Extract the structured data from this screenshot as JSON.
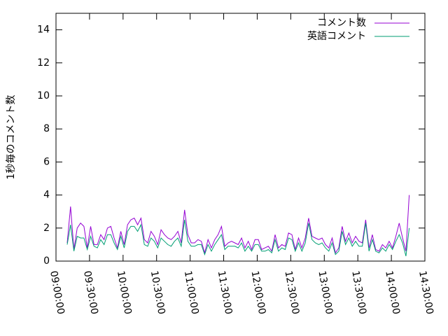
{
  "chart_data": {
    "type": "line",
    "ylabel": "1秒毎のコメント数",
    "x": [
      "09:10:00",
      "09:13:00",
      "09:16:00",
      "09:19:00",
      "09:22:00",
      "09:25:00",
      "09:28:00",
      "09:31:00",
      "09:34:00",
      "09:37:00",
      "09:40:00",
      "09:43:00",
      "09:46:00",
      "09:49:00",
      "09:52:00",
      "09:55:00",
      "09:58:00",
      "10:01:00",
      "10:04:00",
      "10:07:00",
      "10:10:00",
      "10:13:00",
      "10:16:00",
      "10:19:00",
      "10:22:00",
      "10:25:00",
      "10:28:00",
      "10:31:00",
      "10:34:00",
      "10:37:00",
      "10:40:00",
      "10:43:00",
      "10:46:00",
      "10:49:00",
      "10:52:00",
      "10:55:00",
      "10:58:00",
      "11:01:00",
      "11:04:00",
      "11:07:00",
      "11:10:00",
      "11:13:00",
      "11:16:00",
      "11:19:00",
      "11:22:00",
      "11:25:00",
      "11:28:00",
      "11:31:00",
      "11:34:00",
      "11:37:00",
      "11:40:00",
      "11:43:00",
      "11:46:00",
      "11:49:00",
      "11:52:00",
      "11:55:00",
      "11:58:00",
      "12:01:00",
      "12:04:00",
      "12:07:00",
      "12:10:00",
      "12:13:00",
      "12:16:00",
      "12:19:00",
      "12:22:00",
      "12:25:00",
      "12:28:00",
      "12:31:00",
      "12:34:00",
      "12:37:00",
      "12:40:00",
      "12:43:00",
      "12:46:00",
      "12:49:00",
      "12:52:00",
      "12:55:00",
      "12:58:00",
      "13:01:00",
      "13:04:00",
      "13:07:00",
      "13:10:00",
      "13:13:00",
      "13:16:00",
      "13:19:00",
      "13:22:00",
      "13:25:00",
      "13:28:00",
      "13:31:00",
      "13:34:00",
      "13:37:00",
      "13:40:00",
      "13:43:00",
      "13:46:00",
      "13:49:00",
      "13:52:00",
      "13:55:00",
      "13:58:00",
      "14:01:00",
      "14:04:00",
      "14:07:00",
      "14:10:00",
      "14:13:00",
      "14:16:00"
    ],
    "series": [
      {
        "name": "コメント数",
        "color": "#9400d3",
        "values": [
          1.1,
          3.3,
          0.7,
          2.0,
          2.3,
          2.1,
          0.8,
          2.1,
          1.0,
          1.0,
          1.6,
          1.3,
          2.0,
          2.1,
          1.4,
          0.8,
          1.8,
          1.0,
          2.2,
          2.5,
          2.6,
          2.2,
          2.6,
          1.3,
          1.1,
          1.8,
          1.5,
          1.0,
          1.9,
          1.6,
          1.4,
          1.3,
          1.5,
          1.8,
          1.1,
          3.1,
          1.6,
          1.1,
          1.1,
          1.3,
          1.2,
          0.5,
          1.3,
          0.8,
          1.3,
          1.6,
          2.1,
          0.9,
          1.1,
          1.2,
          1.1,
          1.0,
          1.4,
          0.8,
          1.2,
          0.7,
          1.3,
          1.3,
          0.7,
          0.8,
          0.9,
          0.6,
          1.6,
          0.8,
          1.0,
          0.9,
          1.7,
          1.6,
          0.7,
          1.4,
          0.8,
          1.4,
          2.6,
          1.5,
          1.4,
          1.3,
          1.4,
          1.0,
          0.8,
          1.4,
          0.5,
          0.8,
          2.1,
          1.2,
          1.7,
          1.1,
          1.5,
          1.2,
          1.1,
          2.5,
          0.8,
          1.6,
          0.7,
          0.6,
          1.0,
          0.8,
          1.2,
          0.8,
          1.5,
          2.3,
          1.4,
          0.6,
          4.0
        ]
      },
      {
        "name": "英語コメント",
        "color": "#009e73",
        "values": [
          1.0,
          2.2,
          0.6,
          1.5,
          1.4,
          1.4,
          0.7,
          1.5,
          0.9,
          0.8,
          1.3,
          1.0,
          1.6,
          1.6,
          1.1,
          0.7,
          1.5,
          0.8,
          1.8,
          2.1,
          2.1,
          1.8,
          2.2,
          1.0,
          0.9,
          1.4,
          1.2,
          0.8,
          1.4,
          1.2,
          1.0,
          0.9,
          1.2,
          1.4,
          0.9,
          2.5,
          1.2,
          0.9,
          0.9,
          1.0,
          1.0,
          0.4,
          1.0,
          0.6,
          1.0,
          1.3,
          1.6,
          0.7,
          0.9,
          0.9,
          0.9,
          0.8,
          1.1,
          0.6,
          0.9,
          0.6,
          1.0,
          1.0,
          0.6,
          0.6,
          0.7,
          0.5,
          1.3,
          0.6,
          0.8,
          0.7,
          1.4,
          1.3,
          0.6,
          1.1,
          0.6,
          1.1,
          2.3,
          1.3,
          1.1,
          1.0,
          1.1,
          0.8,
          0.6,
          1.1,
          0.4,
          0.6,
          1.8,
          1.0,
          1.4,
          0.9,
          1.2,
          0.9,
          0.9,
          2.3,
          0.6,
          1.3,
          0.6,
          0.5,
          0.8,
          0.6,
          1.0,
          0.7,
          1.2,
          1.6,
          1.1,
          0.3,
          2.0
        ]
      }
    ],
    "xlim": [
      "09:00:00",
      "14:30:00"
    ],
    "xticks": [
      "09:00:00",
      "09:30:00",
      "10:00:00",
      "10:30:00",
      "11:00:00",
      "11:30:00",
      "12:00:00",
      "12:30:00",
      "13:00:00",
      "13:30:00",
      "14:00:00",
      "14:30:00"
    ],
    "ylim": [
      0,
      15
    ],
    "yticks": [
      0,
      2,
      4,
      6,
      8,
      10,
      12,
      14
    ],
    "legend": "upper right"
  }
}
